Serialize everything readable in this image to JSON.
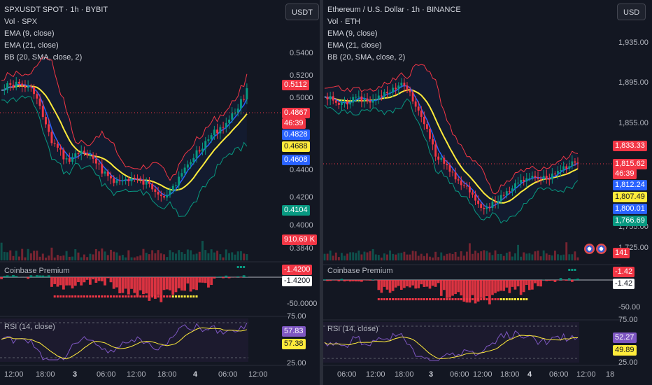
{
  "left": {
    "title": "SPXUSDT SPOT · 1h · BYBIT",
    "legend": [
      "Vol · SPX",
      "EMA (9, close)",
      "EMA (21, close)",
      "BB (20, SMA, close, 2)"
    ],
    "currency": "USDT",
    "price_axis": [
      "0.5400",
      "0.5200",
      "0.5000",
      "0.4400",
      "0.4200",
      "0.4000",
      "0.3840"
    ],
    "tags": [
      {
        "text": "0.5112",
        "color": "#f23645"
      },
      {
        "text": "0.4867",
        "color": "#f23645"
      },
      {
        "text": "46:39",
        "color": "#f23645"
      },
      {
        "text": "0.4828",
        "color": "#2962ff"
      },
      {
        "text": "0.4688",
        "color": "#ffeb3b"
      },
      {
        "text": "0.4608",
        "color": "#2962ff"
      },
      {
        "text": "0.4104",
        "color": "#089981"
      },
      {
        "text": "910.69 K",
        "color": "#f23645"
      }
    ],
    "coinbase_label": "Coinbase Premium",
    "coinbase_tags": [
      "-1.4200",
      "-1.4200"
    ],
    "coinbase_axis": "-50.0000",
    "rsi_label": "RSI (14, close)",
    "rsi_axis": [
      "75.00",
      "25.00"
    ],
    "rsi_tags": [
      "57.83",
      "57.38"
    ],
    "time_axis": [
      "12:00",
      "18:00",
      "3",
      "06:00",
      "12:00",
      "18:00",
      "4",
      "06:00",
      "12:00"
    ]
  },
  "right": {
    "title": "Ethereum / U.S. Dollar · 1h · BINANCE",
    "legend": [
      "Vol · ETH",
      "EMA (9, close)",
      "EMA (21, close)",
      "BB (20, SMA, close, 2)"
    ],
    "currency": "USD",
    "price_axis": [
      "1,935.00",
      "1,895.00",
      "1,855.00",
      "1,755.00",
      "1,725.00"
    ],
    "tags": [
      {
        "text": "1,833.33",
        "color": "#f23645"
      },
      {
        "text": "1,815.62",
        "color": "#f23645"
      },
      {
        "text": "46:39",
        "color": "#f23645"
      },
      {
        "text": "1,812.24",
        "color": "#2962ff"
      },
      {
        "text": "1,807.49",
        "color": "#ffeb3b"
      },
      {
        "text": "1,800.01",
        "color": "#2962ff"
      },
      {
        "text": "1,766.69",
        "color": "#089981"
      },
      {
        "text": "141",
        "color": "#f23645"
      }
    ],
    "coinbase_label": "Coinbase Premium",
    "coinbase_tags": [
      "-1.42",
      "-1.42"
    ],
    "coinbase_axis": "-50.00",
    "rsi_label": "RSI (14, close)",
    "rsi_axis": [
      "75.00",
      "25.00"
    ],
    "rsi_tags": [
      "52.27",
      "49.89"
    ],
    "time_axis": [
      "06:00",
      "12:00",
      "18:00",
      "3",
      "06:00",
      "12:00",
      "18:00",
      "4",
      "06:00",
      "12:00",
      "18"
    ]
  },
  "colors": {
    "up": "#089981",
    "down": "#f23645",
    "ema9": "#2962ff",
    "ema21": "#ffeb3b",
    "bb_upper": "#f23645",
    "bb_lower": "#089981",
    "rsi": "#7e57c2"
  }
}
